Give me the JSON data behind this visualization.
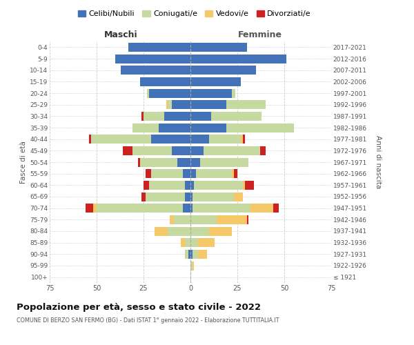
{
  "age_groups": [
    "100+",
    "95-99",
    "90-94",
    "85-89",
    "80-84",
    "75-79",
    "70-74",
    "65-69",
    "60-64",
    "55-59",
    "50-54",
    "45-49",
    "40-44",
    "35-39",
    "30-34",
    "25-29",
    "20-24",
    "15-19",
    "10-14",
    "5-9",
    "0-4"
  ],
  "birth_years": [
    "≤ 1921",
    "1922-1926",
    "1927-1931",
    "1932-1936",
    "1937-1941",
    "1942-1946",
    "1947-1951",
    "1952-1956",
    "1957-1961",
    "1962-1966",
    "1967-1971",
    "1972-1976",
    "1977-1981",
    "1982-1986",
    "1987-1991",
    "1992-1996",
    "1997-2001",
    "2002-2006",
    "2007-2011",
    "2012-2016",
    "2017-2021"
  ],
  "males": {
    "celibi": [
      0,
      0,
      1,
      0,
      0,
      0,
      4,
      3,
      3,
      4,
      7,
      10,
      21,
      17,
      14,
      10,
      22,
      27,
      37,
      40,
      33
    ],
    "coniugati": [
      0,
      0,
      2,
      3,
      12,
      9,
      46,
      21,
      19,
      17,
      20,
      21,
      32,
      14,
      11,
      2,
      1,
      0,
      0,
      0,
      0
    ],
    "vedovi": [
      0,
      0,
      0,
      2,
      7,
      2,
      2,
      0,
      0,
      0,
      0,
      0,
      0,
      0,
      0,
      1,
      0,
      0,
      0,
      0,
      0
    ],
    "divorziati": [
      0,
      0,
      0,
      0,
      0,
      0,
      4,
      2,
      3,
      3,
      1,
      5,
      1,
      0,
      1,
      0,
      0,
      0,
      0,
      0,
      0
    ]
  },
  "females": {
    "nubili": [
      0,
      0,
      1,
      0,
      0,
      0,
      1,
      1,
      2,
      3,
      5,
      7,
      10,
      19,
      11,
      19,
      22,
      27,
      35,
      51,
      30
    ],
    "coniugate": [
      0,
      1,
      3,
      4,
      10,
      14,
      31,
      22,
      26,
      19,
      26,
      30,
      17,
      36,
      27,
      21,
      2,
      0,
      0,
      0,
      0
    ],
    "vedove": [
      0,
      1,
      5,
      9,
      12,
      16,
      12,
      5,
      1,
      1,
      0,
      0,
      1,
      0,
      0,
      0,
      0,
      0,
      0,
      0,
      0
    ],
    "divorziate": [
      0,
      0,
      0,
      0,
      0,
      1,
      3,
      0,
      5,
      2,
      0,
      3,
      1,
      0,
      0,
      0,
      0,
      0,
      0,
      0,
      0
    ]
  },
  "colors": {
    "celibi": "#4472b8",
    "coniugati": "#c5d9a0",
    "vedovi": "#f5c96a",
    "divorziati": "#cc2222"
  },
  "title": "Popolazione per età, sesso e stato civile - 2022",
  "subtitle": "COMUNE DI BERZO SAN FERMO (BG) - Dati ISTAT 1° gennaio 2022 - Elaborazione TUTTITALIA.IT",
  "xlabel_left": "Maschi",
  "xlabel_right": "Femmine",
  "ylabel_left": "Fasce di età",
  "ylabel_right": "Anni di nascita",
  "xlim": 75,
  "legend_labels": [
    "Celibi/Nubili",
    "Coniugati/e",
    "Vedovi/e",
    "Divorziati/e"
  ],
  "background_color": "#ffffff",
  "grid_color": "#cccccc"
}
